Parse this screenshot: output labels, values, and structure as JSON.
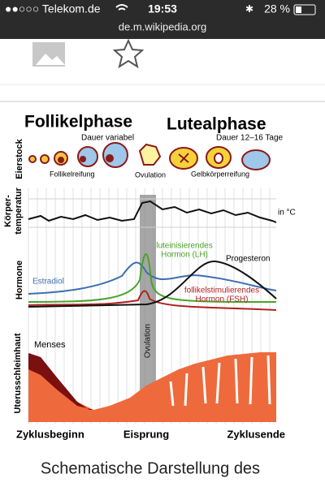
{
  "status_bar": {
    "carrier": "●●○○○ Telekom.de",
    "time": "19:53",
    "battery": "28 %",
    "url": "de.m.wikipedia.org"
  },
  "figure": {
    "phase_1": "Follikelphase",
    "phase_1_duration": "Dauer variabel",
    "phase_2": "Lutealphase",
    "phase_2_duration": "Dauer 12–16 Tage",
    "row_ovary": "Eierstock",
    "ovary_labels": [
      "Follikelreifung",
      "Ovulation",
      "Gelbkörperreifung"
    ],
    "row_temperature": [
      "Körper-",
      "temperatur"
    ],
    "temperature_unit": "in °C",
    "row_hormones": "Hormone",
    "estradiol": "Estradiol",
    "lh": [
      "luteinisierendes",
      "Hormon (LH)"
    ],
    "progesterone": "Progesteron",
    "fsh": [
      "follikelstimulierendes",
      "Hormon (FSH)"
    ],
    "ovulation_band": "Ovulation",
    "row_uterus": "Uterusschleimhaut",
    "menses": "Menses",
    "x_labels": [
      "Zyklusbeginn",
      "Eisprung",
      "Zyklusende"
    ]
  },
  "caption": "Schematische Darstellung des"
}
